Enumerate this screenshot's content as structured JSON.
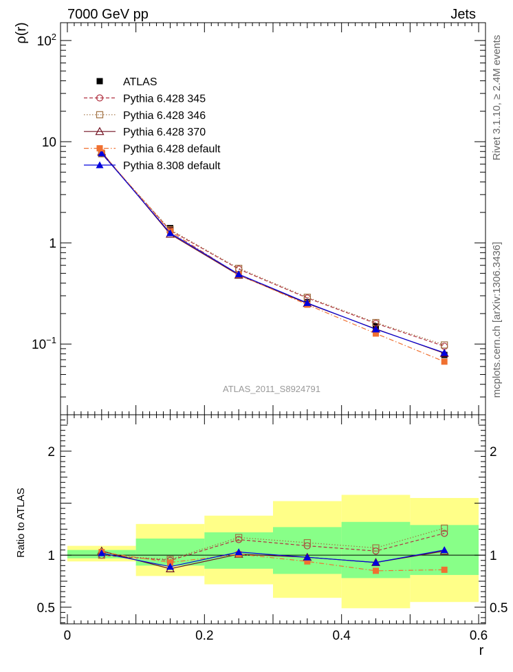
{
  "header": {
    "left": "7000 GeV pp",
    "right": "Jets"
  },
  "side_labels": {
    "rivet": "Rivet 3.1.10, ≥ 2.4M events",
    "source": "mcplots.cern.ch [arXiv:1306.3436]"
  },
  "chart_data": [
    {
      "type": "line",
      "panel": "main",
      "ylabel": "ρ(r)",
      "yscale": "log",
      "ylim": [
        0.02,
        150
      ],
      "xlim": [
        -0.01,
        0.61
      ],
      "watermark": "ATLAS_2011_S8924791",
      "yticks": [
        {
          "value": 100,
          "base": "10",
          "exp": "2"
        },
        {
          "value": 10,
          "label": "10"
        },
        {
          "value": 1,
          "label": "1"
        },
        {
          "value": 0.1,
          "base": "10",
          "exp": "−1"
        }
      ],
      "x": [
        0.05,
        0.15,
        0.25,
        0.35,
        0.45,
        0.55
      ],
      "series": [
        {
          "name": "ATLAS",
          "values": [
            7.6,
            1.4,
            0.48,
            0.26,
            0.15,
            0.078
          ],
          "color": "#000000",
          "marker": "square-filled",
          "style": "none"
        },
        {
          "name": "Pythia 6.428 345",
          "values": [
            7.6,
            1.33,
            0.55,
            0.285,
            0.16,
            0.095
          ],
          "color": "#b03040",
          "marker": "circle-open",
          "style": "dashed"
        },
        {
          "name": "Pythia 6.428 346",
          "values": [
            7.6,
            1.35,
            0.56,
            0.29,
            0.163,
            0.098
          ],
          "color": "#a07040",
          "marker": "square-open",
          "style": "dotted"
        },
        {
          "name": "Pythia 6.428 370",
          "values": [
            7.9,
            1.22,
            0.48,
            0.252,
            0.141,
            0.081
          ],
          "color": "#701020",
          "marker": "triangle-open",
          "style": "solid"
        },
        {
          "name": "Pythia 6.428 default",
          "values": [
            7.8,
            1.3,
            0.485,
            0.245,
            0.127,
            0.067
          ],
          "color": "#f07030",
          "marker": "square-filled",
          "style": "dashdot"
        },
        {
          "name": "Pythia 8.308 default",
          "values": [
            7.7,
            1.25,
            0.49,
            0.255,
            0.14,
            0.082
          ],
          "color": "#0000dd",
          "marker": "triangle-filled",
          "style": "solid"
        }
      ]
    },
    {
      "type": "line",
      "panel": "ratio",
      "ylabel": "Ratio to ATLAS",
      "ylim": [
        0.34,
        2.35
      ],
      "xlabel": "r",
      "xticks": [
        0,
        0.2,
        0.4,
        0.6
      ],
      "xticklabels": [
        "0",
        "0.2",
        "0.4",
        "0.6"
      ],
      "yticks": [
        0.5,
        1,
        2
      ],
      "yticklabels": [
        "0.5",
        "1",
        "2"
      ],
      "x": [
        0.05,
        0.15,
        0.25,
        0.35,
        0.45,
        0.55
      ],
      "bands": {
        "bin_edges": [
          0,
          0.1,
          0.2,
          0.3,
          0.4,
          0.5,
          0.6
        ],
        "yellow": {
          "low": [
            0.94,
            0.8,
            0.72,
            0.59,
            0.49,
            0.55
          ],
          "high": [
            1.09,
            1.3,
            1.38,
            1.52,
            1.58,
            1.55
          ],
          "color": "#ffff88"
        },
        "green": {
          "low": [
            0.97,
            0.9,
            0.87,
            0.82,
            0.78,
            0.81
          ],
          "high": [
            1.05,
            1.16,
            1.22,
            1.27,
            1.32,
            1.29
          ],
          "color": "#88ff88"
        }
      },
      "series": [
        {
          "name": "Pythia 6.428 345",
          "values": [
            1.0,
            0.95,
            1.15,
            1.09,
            1.04,
            1.21
          ],
          "color": "#b03040",
          "marker": "circle-open",
          "style": "dashed"
        },
        {
          "name": "Pythia 6.428 346",
          "values": [
            1.0,
            0.96,
            1.17,
            1.12,
            1.07,
            1.26
          ],
          "color": "#a07040",
          "marker": "square-open",
          "style": "dotted"
        },
        {
          "name": "Pythia 6.428 370",
          "values": [
            1.04,
            0.87,
            1.01,
            0.98,
            0.93,
            1.04
          ],
          "color": "#701020",
          "marker": "triangle-open",
          "style": "solid"
        },
        {
          "name": "Pythia 6.428 default",
          "values": [
            1.03,
            0.93,
            1.01,
            0.94,
            0.85,
            0.86
          ],
          "color": "#f07030",
          "marker": "square-filled",
          "style": "dashdot"
        },
        {
          "name": "Pythia 8.308 default",
          "values": [
            1.02,
            0.89,
            1.03,
            0.98,
            0.93,
            1.05
          ],
          "color": "#0000dd",
          "marker": "triangle-filled",
          "style": "solid"
        }
      ]
    }
  ]
}
